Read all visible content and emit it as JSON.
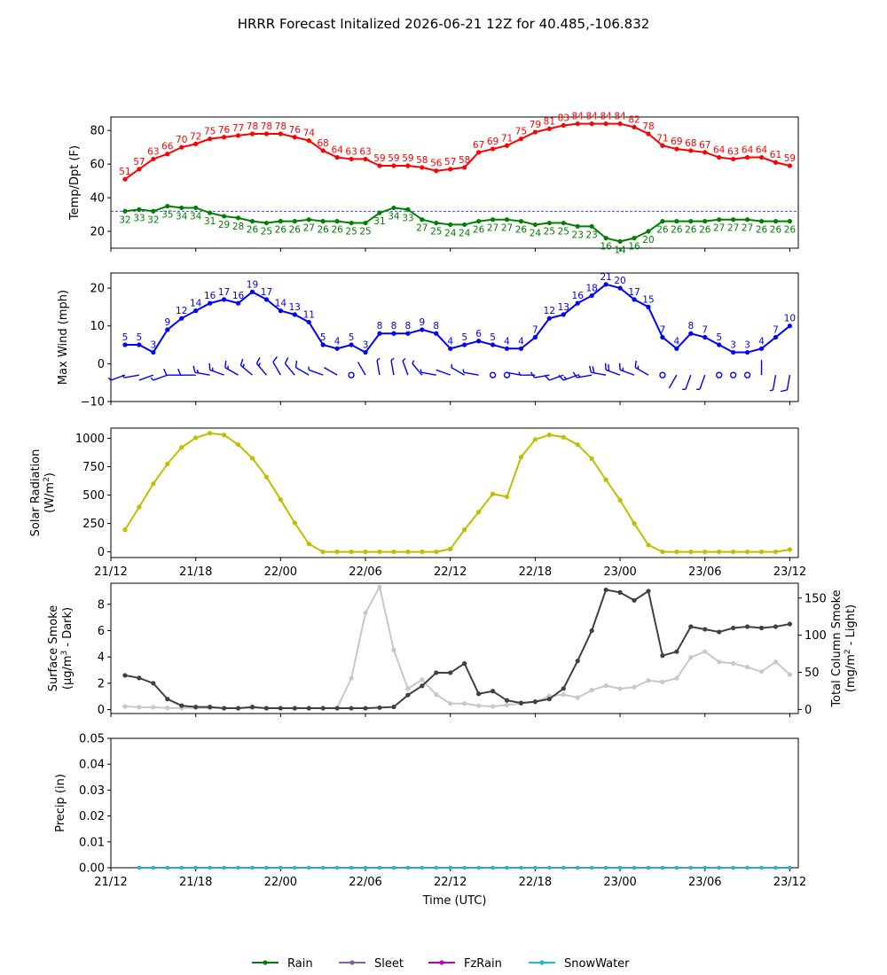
{
  "figure": {
    "title": "HRRR Forecast Initalized 2026-06-21 12Z for 40.485,-106.832"
  },
  "chart_data": [
    {
      "type": "line",
      "panel": "temperature",
      "ylabel": "Temp/Dpt (F)",
      "ylim": [
        10,
        88
      ],
      "yticks": [
        20,
        40,
        60,
        80
      ],
      "freezing_reference": 32,
      "x": [
        1,
        2,
        3,
        4,
        5,
        6,
        7,
        8,
        9,
        10,
        11,
        12,
        13,
        14,
        15,
        16,
        17,
        18,
        19,
        20,
        21,
        22,
        23,
        24,
        25,
        26,
        27,
        28,
        29,
        30,
        31,
        32,
        33,
        34,
        35,
        36,
        37,
        38,
        39,
        40,
        41,
        42,
        43,
        44,
        45,
        46,
        47,
        48
      ],
      "series": [
        {
          "name": "Temp",
          "color": "#ff0000",
          "values": [
            51,
            57,
            63,
            66,
            70,
            72,
            75,
            76,
            77,
            78,
            78,
            78,
            76,
            74,
            68,
            64,
            63,
            63,
            59,
            59,
            59,
            58,
            56,
            57,
            58,
            67,
            69,
            71,
            75,
            79,
            81,
            83,
            84,
            84,
            84,
            84,
            82,
            78,
            71,
            69,
            68,
            67,
            64,
            63,
            64,
            64,
            61,
            59
          ]
        },
        {
          "name": "Dewpoint",
          "color": "#008000",
          "values": [
            32,
            33,
            32,
            35,
            34,
            34,
            31,
            29,
            28,
            26,
            25,
            26,
            26,
            27,
            26,
            26,
            25,
            25,
            31,
            34,
            33,
            27,
            25,
            24,
            24,
            26,
            27,
            27,
            26,
            24,
            25,
            25,
            23,
            23,
            16,
            14,
            16,
            20,
            26,
            26,
            26,
            26,
            27,
            27,
            27,
            26,
            26,
            26
          ]
        }
      ]
    },
    {
      "type": "line",
      "panel": "wind",
      "ylabel": "Max Wind (mph)",
      "ylim": [
        -10,
        24
      ],
      "yticks": [
        -10,
        0,
        10,
        20
      ],
      "x": [
        1,
        2,
        3,
        4,
        5,
        6,
        7,
        8,
        9,
        10,
        11,
        12,
        13,
        14,
        15,
        16,
        17,
        18,
        19,
        20,
        21,
        22,
        23,
        24,
        25,
        26,
        27,
        28,
        29,
        30,
        31,
        32,
        33,
        34,
        35,
        36,
        37,
        38,
        39,
        40,
        41,
        42,
        43,
        44,
        45,
        46,
        47,
        48
      ],
      "series": [
        {
          "name": "Max Wind",
          "color": "#0000ff",
          "values": [
            5,
            5,
            3,
            9,
            12,
            14,
            16,
            17,
            16,
            19,
            17,
            14,
            13,
            11,
            5,
            4,
            5,
            3,
            8,
            8,
            8,
            9,
            8,
            4,
            5,
            6,
            5,
            4,
            4,
            7,
            12,
            13,
            16,
            18,
            21,
            20,
            17,
            15,
            7,
            4,
            8,
            7,
            5,
            3,
            3,
            4,
            7,
            10
          ]
        }
      ],
      "wind_barbs": {
        "direction_deg": [
          250,
          260,
          250,
          250,
          270,
          270,
          280,
          290,
          300,
          310,
          320,
          330,
          320,
          300,
          290,
          300,
          0,
          330,
          350,
          350,
          340,
          320,
          280,
          290,
          300,
          280,
          0,
          0,
          280,
          270,
          260,
          250,
          250,
          260,
          280,
          290,
          290,
          300,
          0,
          210,
          200,
          200,
          0,
          0,
          0,
          0,
          190,
          190
        ],
        "speed_kt": [
          5,
          5,
          3,
          9,
          12,
          14,
          16,
          17,
          16,
          19,
          17,
          14,
          13,
          11,
          5,
          4,
          2,
          3,
          8,
          8,
          8,
          9,
          8,
          4,
          5,
          6,
          2,
          2,
          4,
          7,
          12,
          13,
          16,
          18,
          21,
          20,
          17,
          15,
          2,
          4,
          8,
          7,
          2,
          2,
          2,
          4,
          7,
          10
        ]
      }
    },
    {
      "type": "line",
      "panel": "solar",
      "ylabel": "Solar Radiation (W/m²)",
      "ylim": [
        -50,
        1090
      ],
      "yticks": [
        0,
        250,
        500,
        750,
        1000
      ],
      "x": [
        1,
        2,
        3,
        4,
        5,
        6,
        7,
        8,
        9,
        10,
        11,
        12,
        13,
        14,
        15,
        16,
        17,
        18,
        19,
        20,
        21,
        22,
        23,
        24,
        25,
        26,
        27,
        28,
        29,
        30,
        31,
        32,
        33,
        34,
        35,
        36,
        37,
        38,
        39,
        40,
        41,
        42,
        43,
        44,
        45,
        46,
        47,
        48
      ],
      "series": [
        {
          "name": "Solar Radiation",
          "color": "#bfbf00",
          "values": [
            195,
            395,
            600,
            775,
            920,
            1005,
            1045,
            1030,
            945,
            825,
            660,
            460,
            255,
            70,
            0,
            0,
            0,
            0,
            0,
            0,
            0,
            0,
            0,
            25,
            195,
            350,
            510,
            485,
            835,
            990,
            1030,
            1010,
            945,
            820,
            635,
            455,
            250,
            60,
            0,
            0,
            0,
            0,
            0,
            0,
            0,
            0,
            0,
            20
          ]
        }
      ]
    },
    {
      "type": "line",
      "panel": "smoke",
      "ylabel": "Surface Smoke (µg/m³ - Dark)",
      "y2label": "Total Column Smoke (mg/m² - Light)",
      "ylim": [
        -0.3,
        9.6
      ],
      "yticks": [
        0,
        2,
        4,
        6,
        8
      ],
      "y2lim": [
        -5.5,
        170
      ],
      "y2ticks": [
        0,
        50,
        100,
        150
      ],
      "x": [
        1,
        2,
        3,
        4,
        5,
        6,
        7,
        8,
        9,
        10,
        11,
        12,
        13,
        14,
        15,
        16,
        17,
        18,
        19,
        20,
        21,
        22,
        23,
        24,
        25,
        26,
        27,
        28,
        29,
        30,
        31,
        32,
        33,
        34,
        35,
        36,
        37,
        38,
        39,
        40,
        41,
        42,
        43,
        44,
        45,
        46,
        47,
        48
      ],
      "series": [
        {
          "name": "Surface Smoke",
          "axis": "left",
          "color": "#404040",
          "values": [
            2.6,
            2.4,
            2.0,
            0.8,
            0.3,
            0.2,
            0.2,
            0.1,
            0.1,
            0.2,
            0.1,
            0.1,
            0.1,
            0.1,
            0.1,
            0.1,
            0.1,
            0.1,
            0.15,
            0.2,
            1.1,
            1.8,
            2.8,
            2.8,
            3.5,
            1.2,
            1.4,
            0.7,
            0.5,
            0.6,
            0.8,
            1.6,
            3.7,
            6.0,
            9.1,
            8.9,
            8.3,
            9.0,
            4.1,
            4.4,
            6.3,
            6.1,
            5.9,
            6.2,
            6.3,
            6.2,
            6.3,
            6.5
          ]
        },
        {
          "name": "Total Column Smoke",
          "axis": "right",
          "color": "#c8c8c8",
          "values": [
            4,
            3,
            3,
            2,
            2,
            2,
            2,
            2,
            2,
            2,
            2,
            2,
            2,
            2,
            2,
            2,
            42,
            130,
            165,
            80,
            28,
            40,
            20,
            8,
            8,
            5,
            4,
            6,
            8,
            10,
            18,
            20,
            16,
            26,
            32,
            28,
            30,
            39,
            37,
            42,
            70,
            78,
            64,
            62,
            57,
            51,
            64,
            47
          ]
        }
      ]
    },
    {
      "type": "line",
      "panel": "precip",
      "ylabel": "Precip (in)",
      "xlabel": "Time (UTC)",
      "ylim": [
        0,
        0.05
      ],
      "yticks": [
        0.0,
        0.01,
        0.02,
        0.03,
        0.04,
        0.05
      ],
      "x": [
        2,
        3,
        4,
        5,
        6,
        7,
        8,
        9,
        10,
        11,
        12,
        13,
        14,
        15,
        16,
        17,
        18,
        19,
        20,
        21,
        22,
        23,
        24,
        25,
        26,
        27,
        28,
        29,
        30,
        31,
        32,
        33,
        34,
        35,
        36,
        37,
        38,
        39,
        40,
        41,
        42,
        43,
        44,
        45,
        46,
        47,
        48
      ],
      "series": [
        {
          "name": "Rain",
          "color": "#008000",
          "values": [
            0,
            0,
            0,
            0,
            0,
            0,
            0,
            0,
            0,
            0,
            0,
            0,
            0,
            0,
            0,
            0,
            0,
            0,
            0,
            0,
            0,
            0,
            0,
            0,
            0,
            0,
            0,
            0,
            0,
            0,
            0,
            0,
            0,
            0,
            0,
            0,
            0,
            0,
            0,
            0,
            0,
            0,
            0,
            0,
            0,
            0,
            0
          ]
        },
        {
          "name": "Sleet",
          "color": "#8064a2",
          "values": [
            0,
            0,
            0,
            0,
            0,
            0,
            0,
            0,
            0,
            0,
            0,
            0,
            0,
            0,
            0,
            0,
            0,
            0,
            0,
            0,
            0,
            0,
            0,
            0,
            0,
            0,
            0,
            0,
            0,
            0,
            0,
            0,
            0,
            0,
            0,
            0,
            0,
            0,
            0,
            0,
            0,
            0,
            0,
            0,
            0,
            0,
            0
          ]
        },
        {
          "name": "FzRain",
          "color": "#c000c0",
          "values": [
            0,
            0,
            0,
            0,
            0,
            0,
            0,
            0,
            0,
            0,
            0,
            0,
            0,
            0,
            0,
            0,
            0,
            0,
            0,
            0,
            0,
            0,
            0,
            0,
            0,
            0,
            0,
            0,
            0,
            0,
            0,
            0,
            0,
            0,
            0,
            0,
            0,
            0,
            0,
            0,
            0,
            0,
            0,
            0,
            0,
            0,
            0
          ]
        },
        {
          "name": "SnowWater",
          "color": "#17becf",
          "values": [
            0,
            0,
            0,
            0,
            0,
            0,
            0,
            0,
            0,
            0,
            0,
            0,
            0,
            0,
            0,
            0,
            0,
            0,
            0,
            0,
            0,
            0,
            0,
            0,
            0,
            0,
            0,
            0,
            0,
            0,
            0,
            0,
            0,
            0,
            0,
            0,
            0,
            0,
            0,
            0,
            0,
            0,
            0,
            0,
            0,
            0,
            0
          ]
        }
      ]
    }
  ],
  "x_axis": {
    "xlim": [
      0,
      48.6
    ],
    "tick_positions": [
      0,
      6,
      12,
      18,
      24,
      30,
      36,
      42,
      48
    ],
    "tick_labels": [
      "21/12",
      "21/18",
      "22/00",
      "22/06",
      "22/12",
      "22/18",
      "23/00",
      "23/06",
      "23/12"
    ],
    "xlabel": "Time (UTC)"
  },
  "legend": {
    "placement": "bottom-center",
    "entries": [
      {
        "label": "Rain",
        "color": "#008000"
      },
      {
        "label": "Sleet",
        "color": "#8064a2"
      },
      {
        "label": "FzRain",
        "color": "#c000c0"
      },
      {
        "label": "SnowWater",
        "color": "#17becf"
      }
    ]
  }
}
